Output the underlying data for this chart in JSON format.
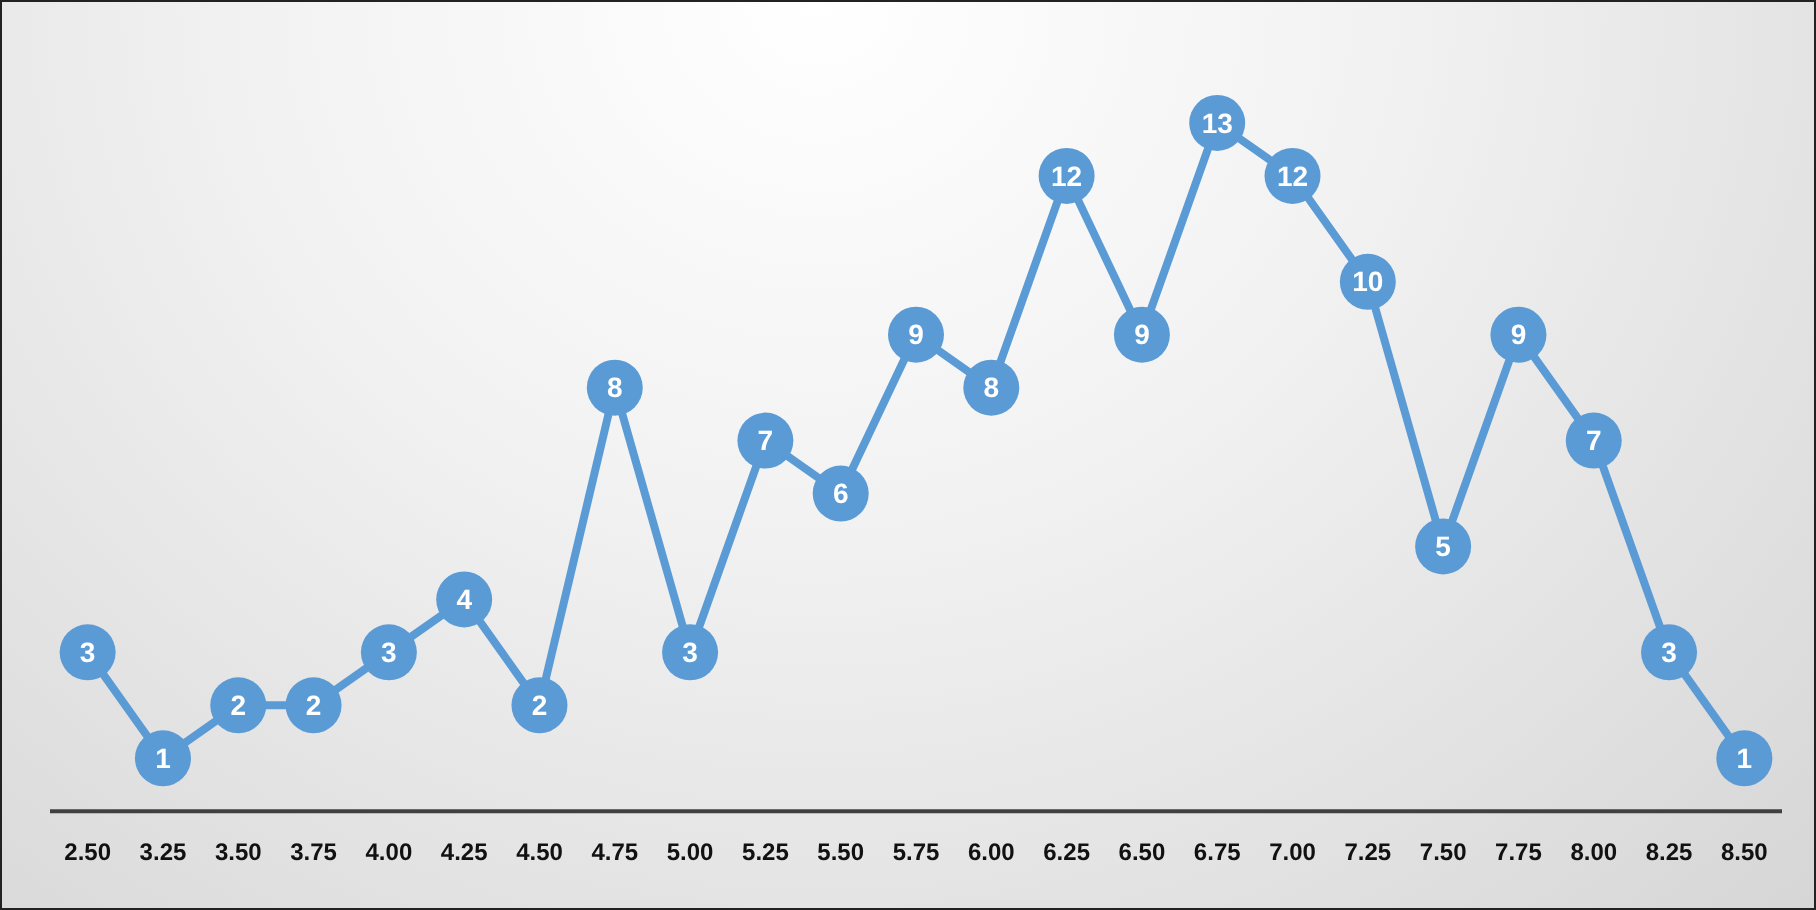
{
  "chart_data": {
    "type": "line",
    "categories": [
      "2.50",
      "3.25",
      "3.50",
      "3.75",
      "4.00",
      "4.25",
      "4.50",
      "4.75",
      "5.00",
      "5.25",
      "5.50",
      "5.75",
      "6.00",
      "6.25",
      "6.50",
      "6.75",
      "7.00",
      "7.25",
      "7.50",
      "7.75",
      "8.00",
      "8.25",
      "8.50"
    ],
    "values": [
      3,
      1,
      2,
      2,
      3,
      4,
      2,
      8,
      3,
      7,
      6,
      9,
      8,
      12,
      9,
      13,
      12,
      10,
      5,
      9,
      7,
      3,
      1
    ],
    "color": "#5b9bd5",
    "tick_labels": "x",
    "marker": "circle",
    "line_style": "solid",
    "grid": false,
    "legend": false,
    "data_labels": true
  }
}
